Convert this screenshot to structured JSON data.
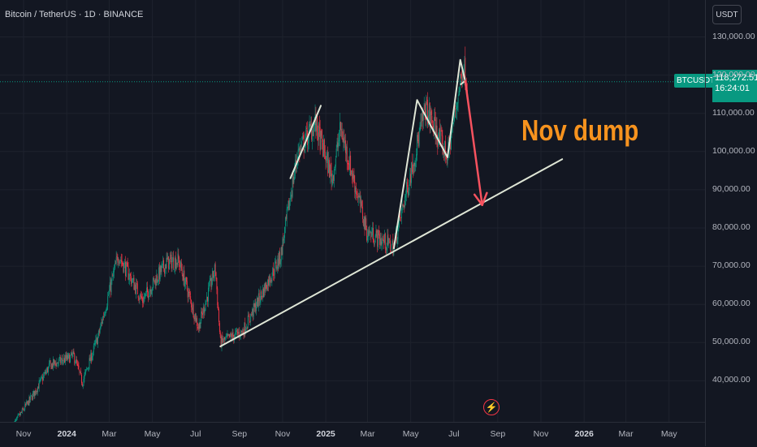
{
  "header": {
    "title": "Bitcoin / TetherUS · 1D · BINANCE"
  },
  "currency": {
    "label": "USDT"
  },
  "last_price": {
    "symbol": "BTCUSDT",
    "price": "118,272.51",
    "countdown": "16:24:01"
  },
  "annotation": {
    "text": "Nov dump"
  },
  "colors": {
    "up": "#089981",
    "down": "#f23645",
    "line": "#dfe6d6",
    "arrow": "#f7525f",
    "annotation": "#f7931e",
    "background": "#131722"
  },
  "icons": {
    "alert": "lightning-bolt-icon"
  },
  "chart_data": {
    "type": "candlestick",
    "title": "Bitcoin / TetherUS · 1D · BINANCE",
    "ylim": [
      31000,
      136000
    ],
    "y_ticks": [
      "130,000.00",
      "120,000.00",
      "110,000.00",
      "100,000.00",
      "90,000.00",
      "80,000.00",
      "70,000.00",
      "60,000.00",
      "50,000.00",
      "40,000.00"
    ],
    "x_ticks": [
      {
        "label": "Nov",
        "bold": false
      },
      {
        "label": "2024",
        "bold": true
      },
      {
        "label": "Mar",
        "bold": false
      },
      {
        "label": "May",
        "bold": false
      },
      {
        "label": "Jul",
        "bold": false
      },
      {
        "label": "Sep",
        "bold": false
      },
      {
        "label": "Nov",
        "bold": false
      },
      {
        "label": "2025",
        "bold": true
      },
      {
        "label": "Mar",
        "bold": false
      },
      {
        "label": "May",
        "bold": false
      },
      {
        "label": "Jul",
        "bold": false
      },
      {
        "label": "Sep",
        "bold": false
      },
      {
        "label": "Nov",
        "bold": false
      },
      {
        "label": "2026",
        "bold": true
      },
      {
        "label": "Mar",
        "bold": false
      },
      {
        "label": "May",
        "bold": false
      }
    ],
    "x_tick_dates": [
      "2023-11-01",
      "2024-01-01",
      "2024-03-01",
      "2024-05-01",
      "2024-07-01",
      "2024-09-01",
      "2024-11-01",
      "2025-01-01",
      "2025-03-01",
      "2025-05-01",
      "2025-07-01",
      "2025-09-01",
      "2025-11-01",
      "2026-01-01",
      "2026-03-01",
      "2026-05-01"
    ],
    "price_path": [
      [
        "2023-10-18",
        28500
      ],
      [
        "2023-11-15",
        36500
      ],
      [
        "2023-12-08",
        44000
      ],
      [
        "2024-01-11",
        46500
      ],
      [
        "2024-01-23",
        39500
      ],
      [
        "2024-02-15",
        52000
      ],
      [
        "2024-03-14",
        73000
      ],
      [
        "2024-04-17",
        61000
      ],
      [
        "2024-05-21",
        71000
      ],
      [
        "2024-06-07",
        71500
      ],
      [
        "2024-07-05",
        54000
      ],
      [
        "2024-07-29",
        69500
      ],
      [
        "2024-08-05",
        50000
      ],
      [
        "2024-09-06",
        53000
      ],
      [
        "2024-10-29",
        72500
      ],
      [
        "2024-11-22",
        99500
      ],
      [
        "2024-12-17",
        107500
      ],
      [
        "2025-01-10",
        93000
      ],
      [
        "2025-01-22",
        106000
      ],
      [
        "2025-02-28",
        79000
      ],
      [
        "2025-04-07",
        75000
      ],
      [
        "2025-05-22",
        111500
      ],
      [
        "2025-06-22",
        98500
      ],
      [
        "2025-07-14",
        122800
      ],
      [
        "2025-07-20",
        118272
      ]
    ],
    "drawings": [
      {
        "type": "trendline",
        "from": [
          "2024-08-05",
          49000
        ],
        "to": [
          "2025-12-01",
          98000
        ]
      },
      {
        "type": "trendline",
        "from": [
          "2024-11-12",
          93000
        ],
        "to": [
          "2024-12-25",
          112000
        ]
      },
      {
        "type": "polyline",
        "points": [
          [
            "2025-04-07",
            74500
          ],
          [
            "2025-05-10",
            113500
          ],
          [
            "2025-06-22",
            98500
          ],
          [
            "2025-07-10",
            124000
          ],
          [
            "2025-07-17",
            118500
          ],
          [
            "2025-07-10",
            117500
          ]
        ]
      },
      {
        "type": "arrow",
        "from": [
          "2025-07-17",
          118500
        ],
        "to": [
          "2025-08-10",
          86000
        ]
      }
    ],
    "last_price": 118272.51
  }
}
